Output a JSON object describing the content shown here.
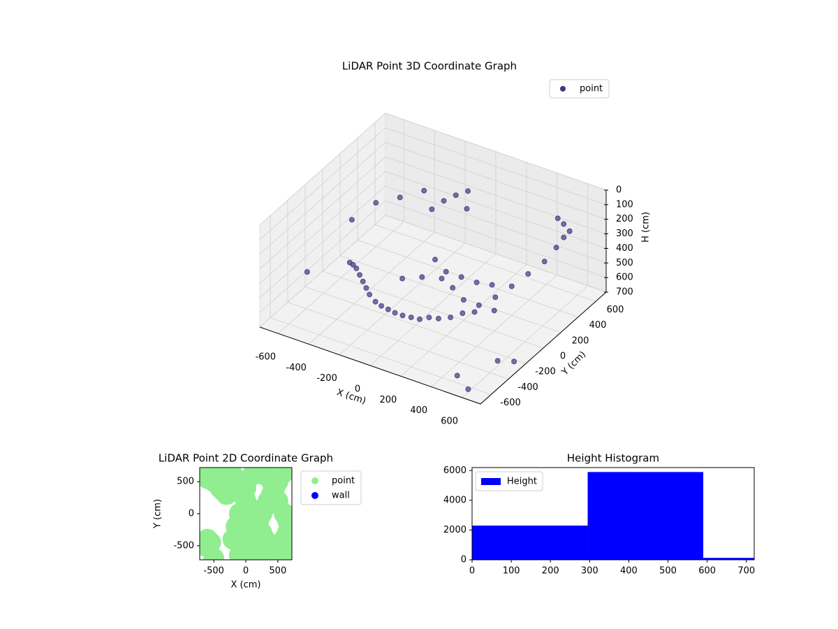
{
  "chart_data": [
    {
      "type": "scatter3d",
      "title": "LiDAR Point 3D Coordinate Graph",
      "x_label": "X (cm)",
      "y_label": "Y (cm)",
      "z_label": "H (cm)",
      "xlim": [
        -720,
        720
      ],
      "ylim": [
        -720,
        720
      ],
      "zlim": [
        700,
        0
      ],
      "xticks": [
        -600,
        -400,
        -200,
        0,
        200,
        400,
        600
      ],
      "yticks": [
        -600,
        -400,
        -200,
        0,
        200,
        400,
        600
      ],
      "zticks": [
        0,
        100,
        200,
        300,
        400,
        500,
        600,
        700
      ],
      "legend": "upper right",
      "grid": true,
      "series": [
        {
          "name": "point",
          "color": "#46337e",
          "x": [
            -600,
            -550,
            -500,
            -450,
            -400,
            -350,
            -300,
            -250,
            -200,
            -150,
            -100,
            -50,
            0,
            50,
            100,
            150,
            200,
            250,
            300,
            350,
            400,
            450,
            500,
            520,
            540,
            550,
            500,
            450,
            -100,
            -50,
            0,
            50,
            -150,
            -100,
            0,
            100,
            200,
            300,
            -200,
            -100,
            0,
            100,
            200,
            300,
            400,
            -600,
            -500,
            -400,
            500,
            600,
            650,
            700,
            -700,
            -650
          ],
          "y": [
            100,
            50,
            0,
            -50,
            -100,
            -150,
            -200,
            -220,
            -240,
            -250,
            -260,
            -260,
            -250,
            -240,
            -220,
            -200,
            -150,
            -100,
            0,
            100,
            200,
            300,
            400,
            500,
            550,
            600,
            620,
            640,
            300,
            350,
            400,
            300,
            250,
            200,
            150,
            150,
            150,
            150,
            0,
            50,
            100,
            50,
            0,
            -50,
            0,
            400,
            500,
            600,
            -600,
            -650,
            -400,
            -300,
            300,
            -300
          ],
          "z": [
            650,
            620,
            600,
            600,
            600,
            600,
            600,
            620,
            620,
            620,
            620,
            620,
            620,
            620,
            600,
            600,
            600,
            580,
            560,
            540,
            500,
            450,
            400,
            350,
            300,
            280,
            260,
            250,
            150,
            120,
            100,
            150,
            200,
            500,
            520,
            520,
            520,
            500,
            560,
            540,
            540,
            540,
            560,
            580,
            560,
            400,
            380,
            350,
            650,
            680,
            600,
            640,
            500,
            520
          ]
        }
      ]
    },
    {
      "type": "scatter",
      "title": "LiDAR Point 2D Coordinate Graph",
      "x_label": "X (cm)",
      "y_label": "Y (cm)",
      "xlim": [
        -720,
        720
      ],
      "ylim": [
        -720,
        720
      ],
      "xticks": [
        -500,
        0,
        500
      ],
      "yticks": [
        -500,
        0,
        500
      ],
      "legend": "outside right",
      "series": [
        {
          "name": "point",
          "color": "#90ee90",
          "x": [
            -650,
            -600,
            -550,
            -500,
            -450,
            -400,
            -350,
            -300,
            -250,
            -200,
            -150,
            -100,
            -50,
            0,
            50,
            100,
            150,
            200,
            250,
            300,
            350,
            400,
            450,
            500,
            550,
            600,
            650,
            -50,
            0,
            50,
            100,
            150,
            200,
            250,
            300,
            350,
            400,
            450,
            500,
            550,
            600,
            -100,
            0,
            100,
            200,
            300,
            400,
            500,
            600,
            650,
            -200,
            -150,
            -100,
            0,
            100,
            200,
            300,
            400,
            500,
            600,
            -600,
            -550,
            -650,
            -500
          ],
          "y": [
            600,
            550,
            650,
            500,
            600,
            400,
            350,
            300,
            650,
            600,
            500,
            400,
            300,
            200,
            100,
            0,
            -100,
            -200,
            -300,
            -400,
            -500,
            -600,
            -650,
            -600,
            -500,
            -400,
            -300,
            -600,
            -500,
            -400,
            -300,
            -200,
            -100,
            0,
            100,
            200,
            300,
            400,
            500,
            600,
            650,
            -650,
            -650,
            -650,
            -650,
            -650,
            -650,
            -650,
            -650,
            -100,
            -400,
            -200,
            0,
            400,
            600,
            650,
            600,
            500,
            200,
            0,
            -400,
            -450,
            -500,
            -700
          ]
        },
        {
          "name": "wall",
          "color": "#0000ff",
          "x": [],
          "y": []
        }
      ]
    },
    {
      "type": "histogram",
      "title": "Height Histogram",
      "xlim": [
        0,
        720
      ],
      "ylim": [
        0,
        6200
      ],
      "xticks": [
        0,
        100,
        200,
        300,
        400,
        500,
        600,
        700
      ],
      "yticks": [
        0,
        2000,
        4000,
        6000
      ],
      "legend": "upper left",
      "series": [
        {
          "name": "Height",
          "color": "#0000ff",
          "bins": [
            0,
            295,
            590,
            720
          ],
          "counts": [
            2300,
            5900,
            130
          ]
        }
      ]
    }
  ]
}
